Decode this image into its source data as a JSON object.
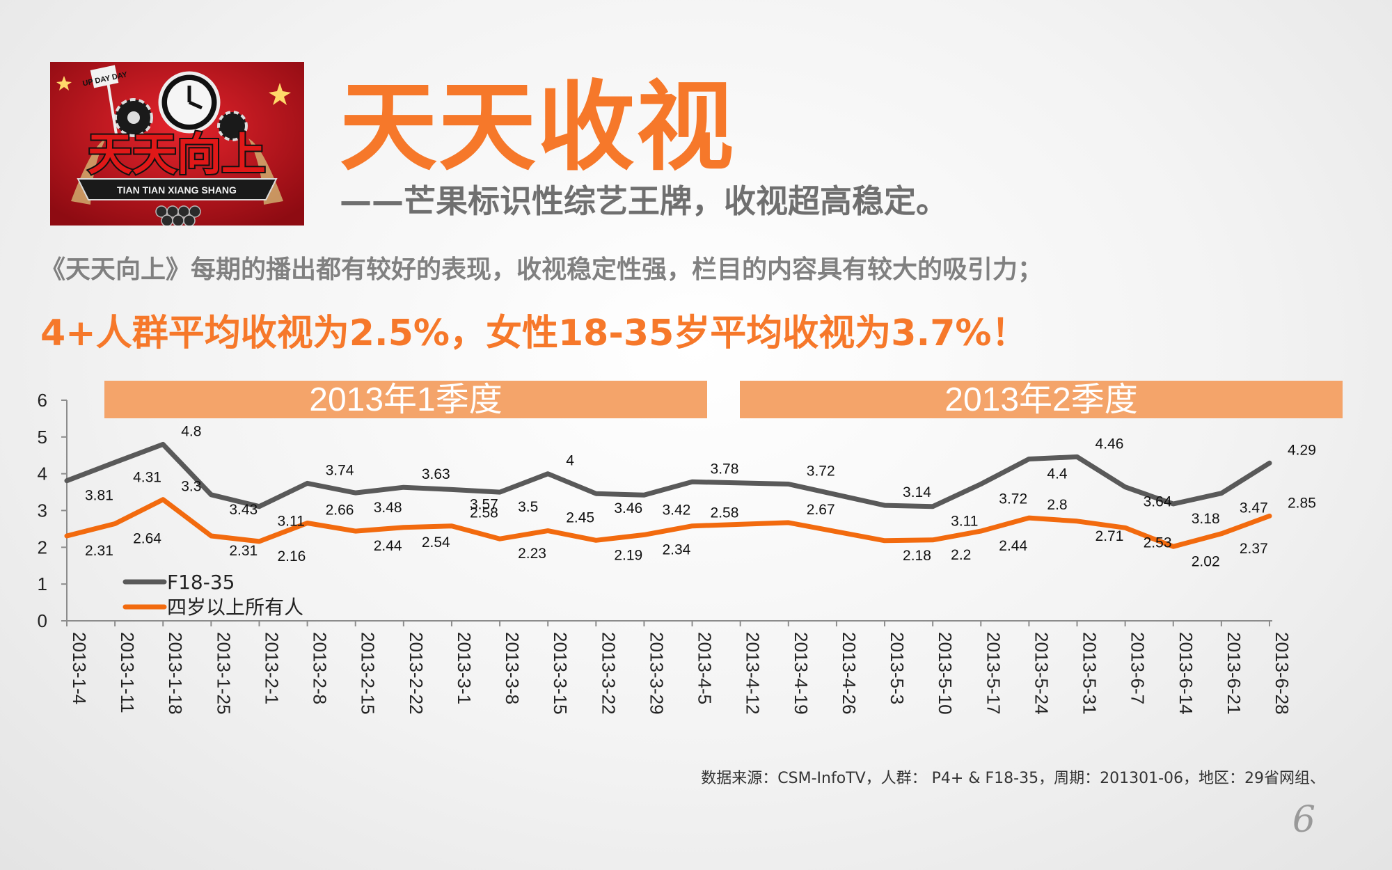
{
  "header": {
    "title": "天天收视",
    "subtitle": "——芒果标识性综艺王牌，收视超高稳定。",
    "logo_text": "天天向上",
    "logo_sign": "UP DAY DAY",
    "logo_banner": "TIAN TIAN XIANG SHANG"
  },
  "description": "《天天向上》每期的播出都有较好的表现，收视稳定性强，栏目的内容具有较大的吸引力；",
  "highlight": "4+人群平均收视为2.5%，女性18-35岁平均收视为3.7%！",
  "source_note": "数据来源：CSM-InfoTV，人群： P4+ & F18-35，周期：201301-06，地区：29省网组、",
  "page_number": "6",
  "colors": {
    "accent": "#f6782a",
    "banner": "#f4a46a",
    "series_f18": "#595959",
    "series_p4": "#f26a0e",
    "logo_red": "#c8101a"
  },
  "chart_data": {
    "type": "line",
    "categories": [
      "2013-1-4",
      "2013-1-11",
      "2013-1-18",
      "2013-1-25",
      "2013-2-1",
      "2013-2-8",
      "2013-2-15",
      "2013-2-22",
      "2013-3-1",
      "2013-3-8",
      "2013-3-15",
      "2013-3-22",
      "2013-3-29",
      "2013-4-5",
      "2013-4-12",
      "2013-4-19",
      "2013-4-26",
      "2013-5-3",
      "2013-5-10",
      "2013-5-17",
      "2013-5-24",
      "2013-5-31",
      "2013-6-7",
      "2013-6-14",
      "2013-6-21",
      "2013-6-28"
    ],
    "series": [
      {
        "name": "F18-35",
        "values": [
          3.81,
          4.31,
          4.8,
          3.43,
          3.11,
          3.74,
          3.48,
          3.63,
          3.57,
          3.5,
          4,
          3.46,
          3.42,
          3.78,
          null,
          3.72,
          null,
          3.14,
          3.11,
          3.72,
          4.4,
          4.46,
          3.64,
          3.18,
          3.47,
          4.29
        ]
      },
      {
        "name": "四岁以上所有人",
        "values": [
          2.31,
          2.64,
          3.3,
          2.31,
          2.16,
          2.66,
          2.44,
          2.54,
          2.58,
          2.23,
          2.45,
          2.19,
          2.34,
          2.58,
          null,
          2.67,
          null,
          2.18,
          2.2,
          2.44,
          2.8,
          2.71,
          2.53,
          2.02,
          2.37,
          2.85
        ]
      }
    ],
    "quarters": [
      {
        "label": "2013年1季度"
      },
      {
        "label": "2013年2季度"
      }
    ],
    "ylim": [
      0,
      6
    ],
    "yticks": [
      "0",
      "1",
      "2",
      "3",
      "4",
      "5",
      "6"
    ],
    "legend": "bottom-left",
    "grid": false,
    "title": "",
    "xlabel": "",
    "ylabel": ""
  }
}
